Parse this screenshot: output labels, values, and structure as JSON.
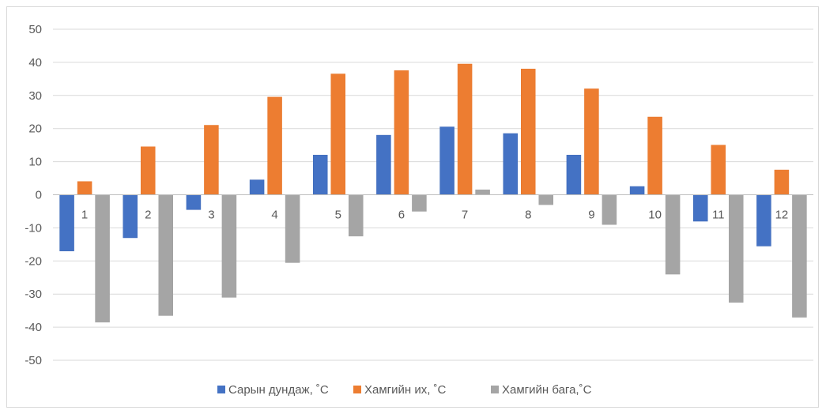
{
  "chart_data": {
    "type": "bar",
    "categories": [
      "1",
      "2",
      "3",
      "4",
      "5",
      "6",
      "7",
      "8",
      "9",
      "10",
      "11",
      "12"
    ],
    "series": [
      {
        "name": "Сарын дундаж, ˚С",
        "color": "#4472c4",
        "values": [
          -17,
          -13,
          -4.5,
          4.5,
          12,
          18,
          20.5,
          18.5,
          12,
          2.5,
          -8,
          -15.5
        ]
      },
      {
        "name": "Хамгийн их, ˚С",
        "color": "#ed7d31",
        "values": [
          4,
          14.5,
          21,
          29.5,
          36.5,
          37.5,
          39.5,
          38,
          32,
          23.5,
          15,
          7.5
        ]
      },
      {
        "name": "Хамгийн бага,˚С",
        "color": "#a5a5a5",
        "values": [
          -38.5,
          -36.5,
          -31,
          -20.5,
          -12.5,
          -5,
          1.5,
          -3,
          -9,
          -24,
          -32.5,
          -37
        ]
      }
    ],
    "ylim": [
      -50,
      50
    ],
    "yticks": [
      "50",
      "40",
      "30",
      "20",
      "10",
      "0",
      "-10",
      "-20",
      "-30",
      "-40",
      "-50"
    ],
    "grid": true,
    "legend": "bottom",
    "title": "",
    "xlabel": "",
    "ylabel": ""
  }
}
